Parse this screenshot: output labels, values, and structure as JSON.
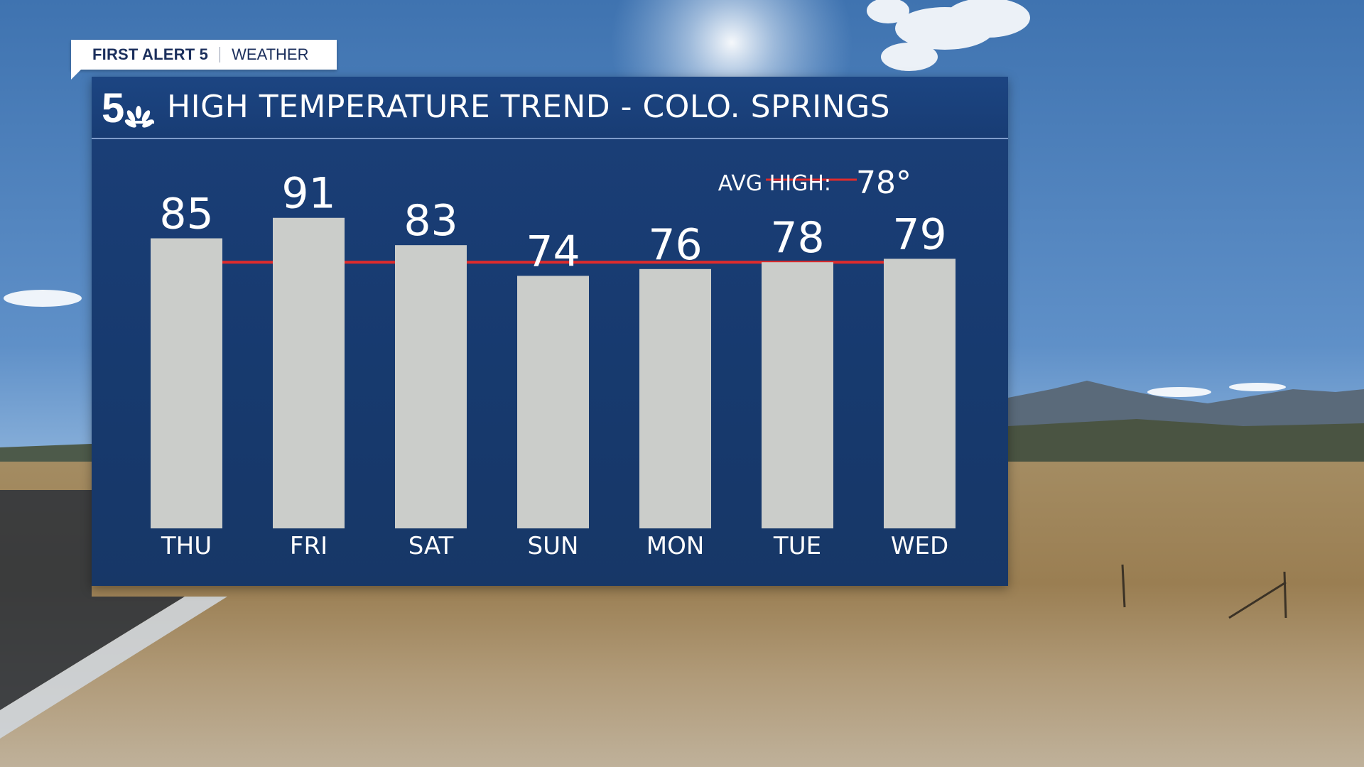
{
  "brand": {
    "primary": "FIRST ALERT 5",
    "secondary": "WEATHER",
    "logo_icon": "nbc-5-peacock-logo-icon"
  },
  "colors": {
    "panel": "#173a6f",
    "bar": "#cbcdca",
    "avg_line": "#e02b2b",
    "text": "#ffffff"
  },
  "chart_data": {
    "type": "bar",
    "title": "HIGH TEMPERATURE TREND - COLO. SPRINGS",
    "categories": [
      "THU",
      "FRI",
      "SAT",
      "SUN",
      "MON",
      "TUE",
      "WED"
    ],
    "values": [
      85,
      91,
      83,
      74,
      76,
      78,
      79
    ],
    "value_labels": [
      "85",
      "91",
      "83",
      "74",
      "76",
      "78",
      "79"
    ],
    "reference_line": {
      "label": "AVG HIGH:",
      "value": 78,
      "value_label": "78°"
    },
    "ylim": [
      0,
      100
    ],
    "grid": false,
    "legend": "top-right"
  }
}
